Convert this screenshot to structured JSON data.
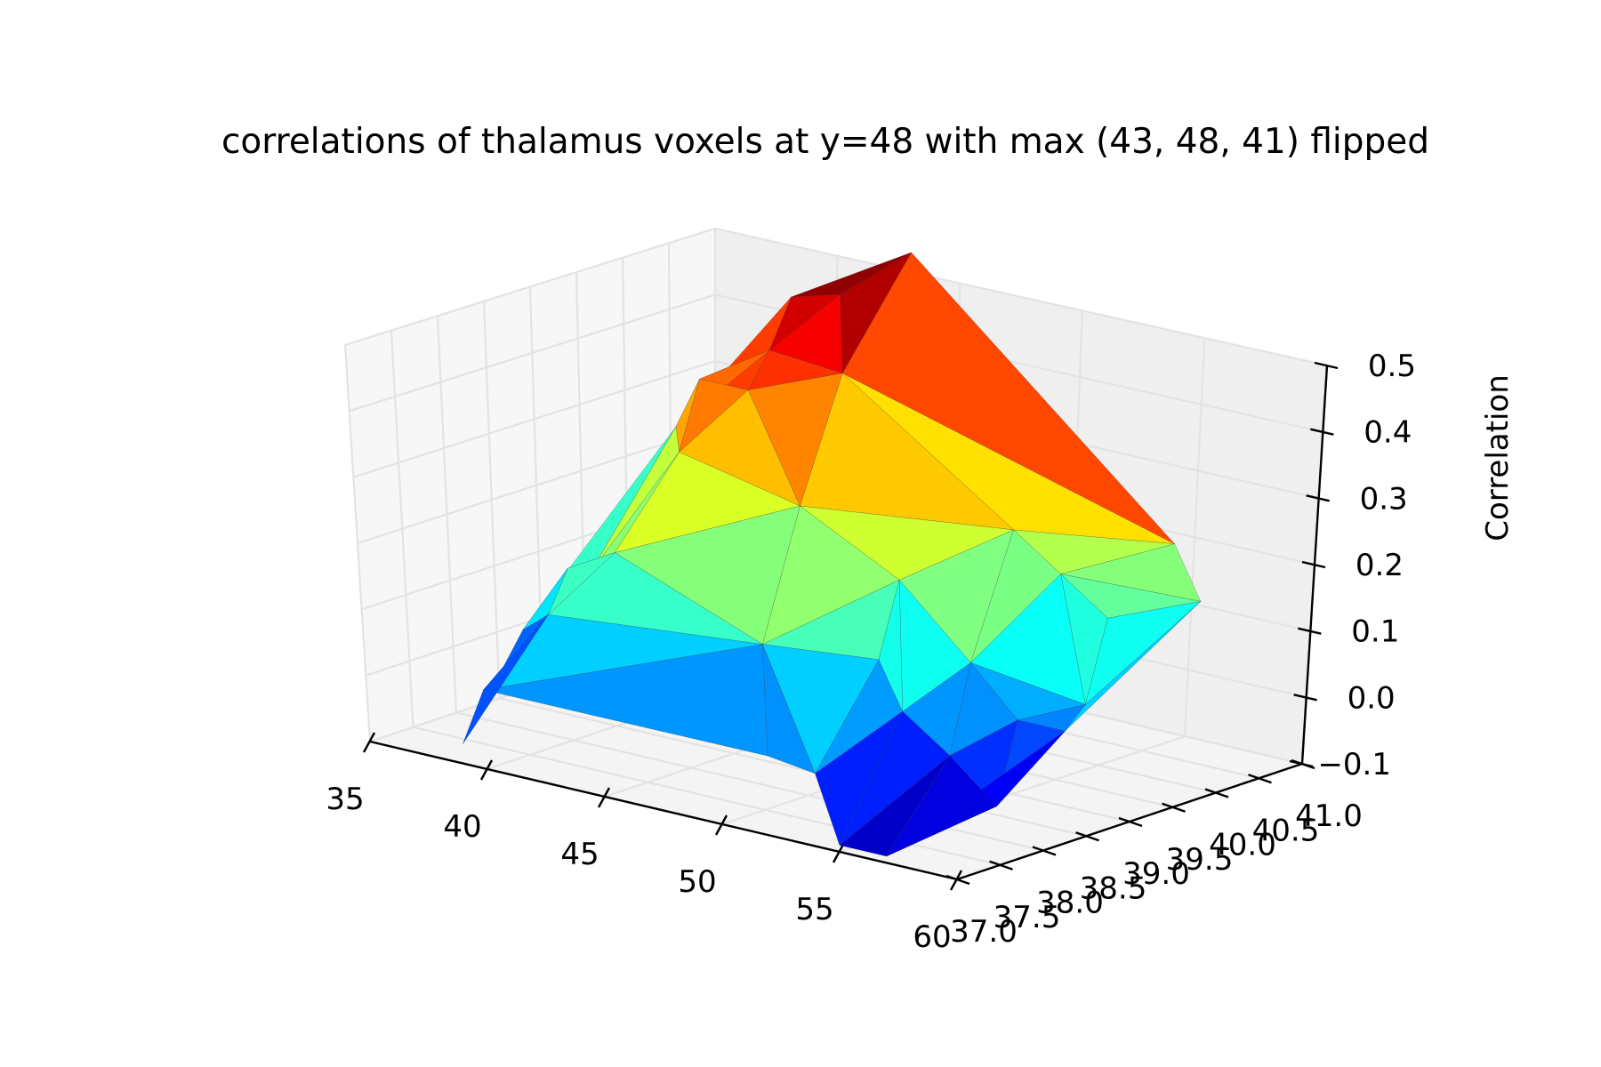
{
  "chart_data": {
    "type": "surface3d",
    "title": "correlations of thalamus voxels at y=48 with max (43, 48, 41) flipped",
    "xlabel": "",
    "ylabel": "",
    "zlabel": "Correlation",
    "x_ticks": [
      "35",
      "40",
      "45",
      "50",
      "55",
      "60"
    ],
    "y_ticks": [
      "37.0",
      "37.5",
      "38.0",
      "38.5",
      "39.0",
      "39.5",
      "40.0",
      "40.5",
      "41.0"
    ],
    "z_ticks": [
      "−0.1",
      "0.0",
      "0.1",
      "0.2",
      "0.3",
      "0.4",
      "0.5"
    ],
    "xlim": [
      35,
      60
    ],
    "ylim": [
      37,
      41
    ],
    "zlim": [
      -0.1,
      0.5
    ],
    "colormap": "jet",
    "grid": true,
    "points": [
      {
        "x": 38,
        "y": 38.0,
        "z": 0.05
      },
      {
        "x": 39,
        "y": 37.0,
        "z": -0.07
      },
      {
        "x": 39,
        "y": 38.5,
        "z": 0.12
      },
      {
        "x": 39,
        "y": 39.5,
        "z": 0.3
      },
      {
        "x": 40,
        "y": 37.0,
        "z": 0.02
      },
      {
        "x": 40,
        "y": 38.0,
        "z": 0.16
      },
      {
        "x": 40,
        "y": 39.5,
        "z": 0.38
      },
      {
        "x": 40,
        "y": 40.5,
        "z": 0.46
      },
      {
        "x": 41,
        "y": 37.5,
        "z": 0.12
      },
      {
        "x": 41,
        "y": 39.0,
        "z": 0.3
      },
      {
        "x": 41,
        "y": 40.0,
        "z": 0.41
      },
      {
        "x": 42,
        "y": 38.0,
        "z": 0.2
      },
      {
        "x": 42,
        "y": 39.5,
        "z": 0.38
      },
      {
        "x": 42,
        "y": 40.5,
        "z": 0.48
      },
      {
        "x": 43,
        "y": 41.0,
        "z": 0.53
      },
      {
        "x": 44,
        "y": 40.0,
        "z": 0.4
      },
      {
        "x": 46,
        "y": 39.0,
        "z": 0.26
      },
      {
        "x": 50,
        "y": 37.5,
        "z": 0.15
      },
      {
        "x": 52,
        "y": 37.0,
        "z": 0.02
      },
      {
        "x": 52,
        "y": 38.5,
        "z": 0.22
      },
      {
        "x": 53,
        "y": 38.0,
        "z": 0.13
      },
      {
        "x": 53,
        "y": 39.5,
        "z": 0.26
      },
      {
        "x": 54,
        "y": 37.0,
        "z": 0.01
      },
      {
        "x": 54,
        "y": 38.0,
        "z": 0.06
      },
      {
        "x": 55,
        "y": 37.0,
        "z": -0.09
      },
      {
        "x": 55,
        "y": 38.5,
        "z": 0.12
      },
      {
        "x": 55,
        "y": 39.5,
        "z": 0.21
      },
      {
        "x": 56,
        "y": 38.0,
        "z": 0.01
      },
      {
        "x": 57,
        "y": 37.0,
        "z": -0.09
      },
      {
        "x": 57,
        "y": 38.5,
        "z": 0.05
      },
      {
        "x": 57,
        "y": 39.5,
        "z": 0.16
      },
      {
        "x": 58,
        "y": 38.0,
        "z": -0.05
      },
      {
        "x": 58,
        "y": 39.0,
        "z": 0.06
      },
      {
        "x": 59,
        "y": 38.5,
        "z": 0.05
      },
      {
        "x": 59,
        "y": 40.0,
        "z": 0.18
      },
      {
        "x": 56,
        "y": 40.5,
        "z": 0.22
      }
    ]
  }
}
